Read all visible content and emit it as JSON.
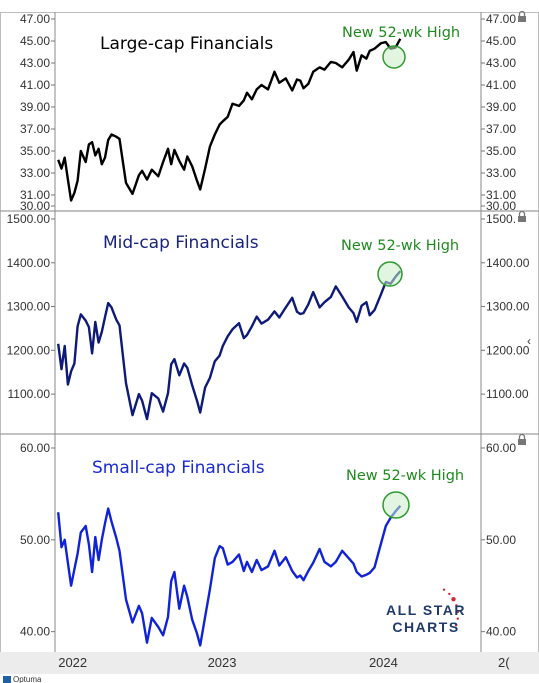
{
  "chart_data": [
    {
      "type": "line",
      "title": "Large-cap Financials",
      "annotation": "New 52-wk High",
      "color": "#000000",
      "title_color": "#000000",
      "ylim": [
        30.0,
        47.0
      ],
      "ticks": [
        "47.00",
        "45.00",
        "43.00",
        "41.00",
        "39.00",
        "37.00",
        "35.00",
        "33.00",
        "31.00",
        "30.00"
      ],
      "tick_values": [
        47,
        45,
        43,
        41,
        39,
        37,
        35,
        33,
        31,
        30
      ],
      "x": [
        2022.0,
        2022.02,
        2022.04,
        2022.06,
        2022.08,
        2022.1,
        2022.12,
        2022.14,
        2022.17,
        2022.19,
        2022.21,
        2022.23,
        2022.25,
        2022.27,
        2022.29,
        2022.31,
        2022.33,
        2022.36,
        2022.38,
        2022.42,
        2022.46,
        2022.5,
        2022.52,
        2022.55,
        2022.58,
        2022.62,
        2022.65,
        2022.68,
        2022.7,
        2022.72,
        2022.75,
        2022.78,
        2022.8,
        2022.83,
        2022.86,
        2022.88,
        2022.91,
        2022.94,
        2022.97,
        2023.0,
        2023.02,
        2023.05,
        2023.08,
        2023.12,
        2023.15,
        2023.17,
        2023.2,
        2023.23,
        2023.26,
        2023.3,
        2023.34,
        2023.37,
        2023.41,
        2023.45,
        2023.48,
        2023.5,
        2023.52,
        2023.55,
        2023.58,
        2023.62,
        2023.65,
        2023.69,
        2023.72,
        2023.76,
        2023.8,
        2023.83,
        2023.85,
        2023.88,
        2023.91,
        2023.93,
        2023.96,
        2024.0,
        2024.03,
        2024.06,
        2024.09,
        2024.12
      ],
      "y": [
        34.2,
        33.4,
        34.4,
        32.4,
        30.5,
        31.2,
        32.3,
        35.0,
        34.0,
        35.6,
        35.8,
        34.6,
        35.2,
        33.8,
        34.4,
        36.0,
        36.5,
        36.3,
        36.1,
        32.1,
        31.1,
        32.8,
        33.2,
        32.4,
        33.3,
        32.7,
        34.0,
        35.2,
        33.8,
        35.1,
        34.1,
        33.3,
        34.5,
        33.6,
        32.3,
        31.5,
        33.4,
        35.4,
        36.5,
        37.4,
        37.7,
        38.1,
        39.3,
        39.1,
        39.6,
        40.3,
        39.7,
        40.6,
        41.0,
        40.6,
        42.2,
        41.2,
        41.6,
        40.5,
        41.5,
        41.4,
        40.7,
        41.1,
        42.2,
        42.6,
        42.4,
        43.1,
        43.0,
        42.6,
        43.3,
        44.0,
        42.3,
        43.7,
        43.4,
        44.1,
        44.3,
        44.8,
        44.9,
        44.3,
        44.4,
        45.2
      ]
    },
    {
      "type": "line",
      "title": "Mid-cap Financials",
      "annotation": "New 52-wk High",
      "color": "#0d1a78",
      "title_color": "#1a237e",
      "ylim": [
        1050,
        1500
      ],
      "ticks": [
        "1500.00",
        "1400.00",
        "1300.00",
        "1200.00",
        "1100.00"
      ],
      "tick_values": [
        1500,
        1400,
        1300,
        1200,
        1100
      ],
      "right_ticks": [
        "1500.",
        "1400.00",
        "1300.00",
        "1200.00",
        "1100.00"
      ],
      "x": [
        2022.0,
        2022.02,
        2022.04,
        2022.06,
        2022.08,
        2022.1,
        2022.12,
        2022.14,
        2022.17,
        2022.19,
        2022.21,
        2022.23,
        2022.25,
        2022.27,
        2022.29,
        2022.31,
        2022.33,
        2022.36,
        2022.38,
        2022.42,
        2022.46,
        2022.5,
        2022.52,
        2022.55,
        2022.58,
        2022.62,
        2022.65,
        2022.68,
        2022.7,
        2022.72,
        2022.75,
        2022.78,
        2022.8,
        2022.83,
        2022.86,
        2022.88,
        2022.91,
        2022.94,
        2022.97,
        2023.0,
        2023.02,
        2023.05,
        2023.08,
        2023.12,
        2023.15,
        2023.17,
        2023.2,
        2023.23,
        2023.26,
        2023.3,
        2023.34,
        2023.37,
        2023.41,
        2023.45,
        2023.48,
        2023.5,
        2023.52,
        2023.55,
        2023.58,
        2023.62,
        2023.65,
        2023.69,
        2023.72,
        2023.76,
        2023.8,
        2023.83,
        2023.85,
        2023.88,
        2023.91,
        2023.93,
        2023.96,
        2024.0,
        2024.03,
        2024.06,
        2024.09,
        2024.12
      ],
      "y": [
        1215,
        1157,
        1210,
        1122,
        1152,
        1170,
        1255,
        1282,
        1268,
        1253,
        1193,
        1265,
        1218,
        1242,
        1276,
        1308,
        1298,
        1270,
        1257,
        1125,
        1052,
        1100,
        1085,
        1043,
        1102,
        1090,
        1060,
        1102,
        1168,
        1180,
        1143,
        1170,
        1160,
        1120,
        1085,
        1058,
        1115,
        1137,
        1175,
        1188,
        1210,
        1232,
        1248,
        1262,
        1228,
        1235,
        1255,
        1277,
        1261,
        1270,
        1289,
        1275,
        1298,
        1320,
        1288,
        1283,
        1285,
        1305,
        1333,
        1298,
        1310,
        1322,
        1346,
        1323,
        1298,
        1285,
        1265,
        1302,
        1310,
        1280,
        1292,
        1328,
        1356,
        1352,
        1368,
        1381
      ]
    },
    {
      "type": "line",
      "title": "Small-cap Financials",
      "annotation": "New 52-wk High",
      "color": "#1023d6",
      "title_color": "#1a2bd0",
      "ylim": [
        38.0,
        60.0
      ],
      "ticks": [
        "60.00",
        "50.00",
        "40.00"
      ],
      "tick_values": [
        60,
        50,
        40
      ],
      "x": [
        2022.0,
        2022.02,
        2022.04,
        2022.06,
        2022.08,
        2022.1,
        2022.12,
        2022.14,
        2022.17,
        2022.19,
        2022.21,
        2022.23,
        2022.25,
        2022.27,
        2022.29,
        2022.31,
        2022.33,
        2022.36,
        2022.38,
        2022.42,
        2022.46,
        2022.5,
        2022.52,
        2022.55,
        2022.58,
        2022.62,
        2022.65,
        2022.68,
        2022.7,
        2022.72,
        2022.75,
        2022.78,
        2022.8,
        2022.83,
        2022.86,
        2022.88,
        2022.91,
        2022.94,
        2022.97,
        2023.0,
        2023.02,
        2023.05,
        2023.08,
        2023.12,
        2023.15,
        2023.17,
        2023.2,
        2023.23,
        2023.26,
        2023.3,
        2023.34,
        2023.37,
        2023.41,
        2023.45,
        2023.48,
        2023.5,
        2023.52,
        2023.55,
        2023.58,
        2023.62,
        2023.65,
        2023.69,
        2023.72,
        2023.76,
        2023.8,
        2023.83,
        2023.85,
        2023.88,
        2023.91,
        2023.93,
        2023.96,
        2024.0,
        2024.03,
        2024.06,
        2024.09,
        2024.12
      ],
      "y": [
        53.0,
        49.2,
        50.0,
        47.5,
        45.0,
        46.8,
        48.5,
        50.8,
        51.5,
        49.5,
        46.5,
        50.3,
        47.8,
        50.0,
        51.8,
        53.4,
        52.0,
        50.2,
        48.8,
        43.5,
        41.0,
        42.8,
        42.0,
        38.8,
        41.5,
        40.5,
        39.6,
        41.6,
        45.5,
        46.5,
        42.5,
        45.0,
        43.8,
        41.3,
        39.8,
        38.5,
        41.6,
        44.6,
        48.0,
        49.3,
        49.1,
        47.3,
        47.6,
        48.4,
        46.6,
        47.6,
        46.5,
        47.8,
        46.7,
        47.1,
        48.8,
        47.2,
        48.1,
        46.6,
        45.9,
        46.1,
        45.6,
        46.6,
        47.5,
        49.0,
        47.6,
        47.1,
        47.6,
        48.8,
        48.0,
        47.4,
        46.5,
        46.0,
        46.2,
        46.4,
        47.0,
        49.6,
        51.5,
        52.4,
        53.1,
        53.7
      ]
    }
  ],
  "x_axis": {
    "labels": [
      "2022",
      "2023",
      "2024",
      "2("
    ],
    "label_x": [
      2022.0,
      2023.0,
      2024.0,
      2024.8
    ],
    "xlim": [
      2021.98,
      2024.62
    ]
  },
  "logo": {
    "line1": "ALL STAR",
    "line2": "CHARTS"
  },
  "source_mark": "Optuma",
  "colors": {
    "annotation": "#1f8a1f",
    "circle_fill": "#c8ecc8",
    "circle_stroke": "#2e9a2e",
    "grid": "#999999",
    "logo_blue": "#1f3a6b",
    "logo_star": "#d02a3a"
  }
}
